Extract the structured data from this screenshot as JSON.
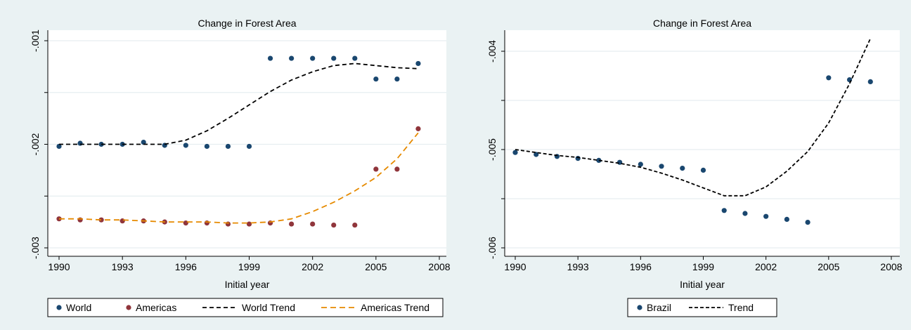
{
  "colors": {
    "background": "#eaf2f3",
    "plot_bg": "#ffffff",
    "grid": "#e6eef0",
    "navy": "#1a476f",
    "maroon": "#90353b",
    "trend_black": "#000000",
    "trend_orange": "#e68a00"
  },
  "chart_data": [
    {
      "type": "scatter",
      "title": "Change in Forest Area",
      "xlabel": "Initial year",
      "ylabel": "",
      "xlim": [
        1990,
        2008
      ],
      "ylim": [
        -0.003,
        -0.001
      ],
      "xticks": [
        "1990",
        "1993",
        "1996",
        "1999",
        "2002",
        "2005",
        "2008"
      ],
      "yticks": [
        "-.003",
        "-.002",
        "-.001"
      ],
      "grid": true,
      "legend_position": "bottom",
      "series": [
        {
          "name": "World",
          "kind": "scatter",
          "color": "#1a476f",
          "x": [
            1990,
            1991,
            1992,
            1993,
            1994,
            1995,
            1996,
            1997,
            1998,
            1999,
            2000,
            2001,
            2002,
            2003,
            2004,
            2005,
            2006,
            2007
          ],
          "y": [
            -0.00202,
            -0.00199,
            -0.002,
            -0.002,
            -0.00198,
            -0.00201,
            -0.00201,
            -0.00202,
            -0.00202,
            -0.00202,
            -0.00117,
            -0.00117,
            -0.00117,
            -0.00117,
            -0.00117,
            -0.00137,
            -0.00137,
            -0.00122
          ]
        },
        {
          "name": "Americas",
          "kind": "scatter",
          "color": "#90353b",
          "x": [
            1990,
            1991,
            1992,
            1993,
            1994,
            1995,
            1996,
            1997,
            1998,
            1999,
            2000,
            2001,
            2002,
            2003,
            2004,
            2005,
            2006,
            2007
          ],
          "y": [
            -0.00272,
            -0.00273,
            -0.00273,
            -0.00274,
            -0.00274,
            -0.00275,
            -0.00276,
            -0.00276,
            -0.00277,
            -0.00277,
            -0.00276,
            -0.00277,
            -0.00277,
            -0.00278,
            -0.00278,
            -0.00224,
            -0.00224,
            -0.00185
          ]
        },
        {
          "name": "World Trend",
          "kind": "line",
          "dash": "6,4",
          "color": "#000000",
          "x": [
            1990,
            1991,
            1992,
            1993,
            1994,
            1995,
            1996,
            1997,
            1998,
            1999,
            2000,
            2001,
            2002,
            2003,
            2004,
            2005,
            2006,
            2007
          ],
          "y": [
            -0.002,
            -0.002,
            -0.002,
            -0.002,
            -0.002,
            -0.002,
            -0.00196,
            -0.00187,
            -0.00175,
            -0.00162,
            -0.00149,
            -0.00138,
            -0.0013,
            -0.00124,
            -0.00122,
            -0.00124,
            -0.00126,
            -0.00127
          ]
        },
        {
          "name": "Americas Trend",
          "kind": "line",
          "dash": "8,5",
          "color": "#e68a00",
          "x": [
            1990,
            1991,
            1992,
            1993,
            1994,
            1995,
            1996,
            1997,
            1998,
            1999,
            2000,
            2001,
            2002,
            2003,
            2004,
            2005,
            2006,
            2007
          ],
          "y": [
            -0.00272,
            -0.00272,
            -0.00273,
            -0.00273,
            -0.00274,
            -0.00275,
            -0.00275,
            -0.00275,
            -0.00276,
            -0.00276,
            -0.00275,
            -0.00272,
            -0.00265,
            -0.00256,
            -0.00245,
            -0.00232,
            -0.00214,
            -0.00189
          ]
        }
      ]
    },
    {
      "type": "scatter",
      "title": "Change in Forest Area",
      "xlabel": "Initial year",
      "ylabel": "",
      "xlim": [
        1990,
        2008
      ],
      "ylim": [
        -0.006,
        -0.004
      ],
      "xticks": [
        "1990",
        "1993",
        "1996",
        "1999",
        "2002",
        "2005",
        "2008"
      ],
      "yticks": [
        "-.006",
        "-.005",
        "-.004"
      ],
      "grid": true,
      "legend_position": "bottom",
      "series": [
        {
          "name": "Brazil",
          "kind": "scatter",
          "color": "#1a476f",
          "x": [
            1990,
            1991,
            1992,
            1993,
            1994,
            1995,
            1996,
            1997,
            1998,
            1999,
            2000,
            2001,
            2002,
            2003,
            2004,
            2005,
            2006,
            2007
          ],
          "y": [
            -0.00503,
            -0.00505,
            -0.00507,
            -0.00509,
            -0.00511,
            -0.00513,
            -0.00515,
            -0.00517,
            -0.00519,
            -0.00521,
            -0.00562,
            -0.00565,
            -0.00568,
            -0.00571,
            -0.00574,
            -0.00427,
            -0.00429,
            -0.00431
          ]
        },
        {
          "name": "Trend",
          "kind": "line",
          "dash": "5,3",
          "color": "#000000",
          "x": [
            1990,
            1991,
            1992,
            1993,
            1994,
            1995,
            1996,
            1997,
            1998,
            1999,
            2000,
            2001,
            2002,
            2003,
            2004,
            2005,
            2006,
            2007
          ],
          "y": [
            -0.005,
            -0.00503,
            -0.00506,
            -0.00508,
            -0.00511,
            -0.00514,
            -0.00518,
            -0.00524,
            -0.00531,
            -0.00539,
            -0.00547,
            -0.00547,
            -0.00538,
            -0.00522,
            -0.00502,
            -0.00473,
            -0.00433,
            -0.00387
          ]
        }
      ]
    }
  ]
}
